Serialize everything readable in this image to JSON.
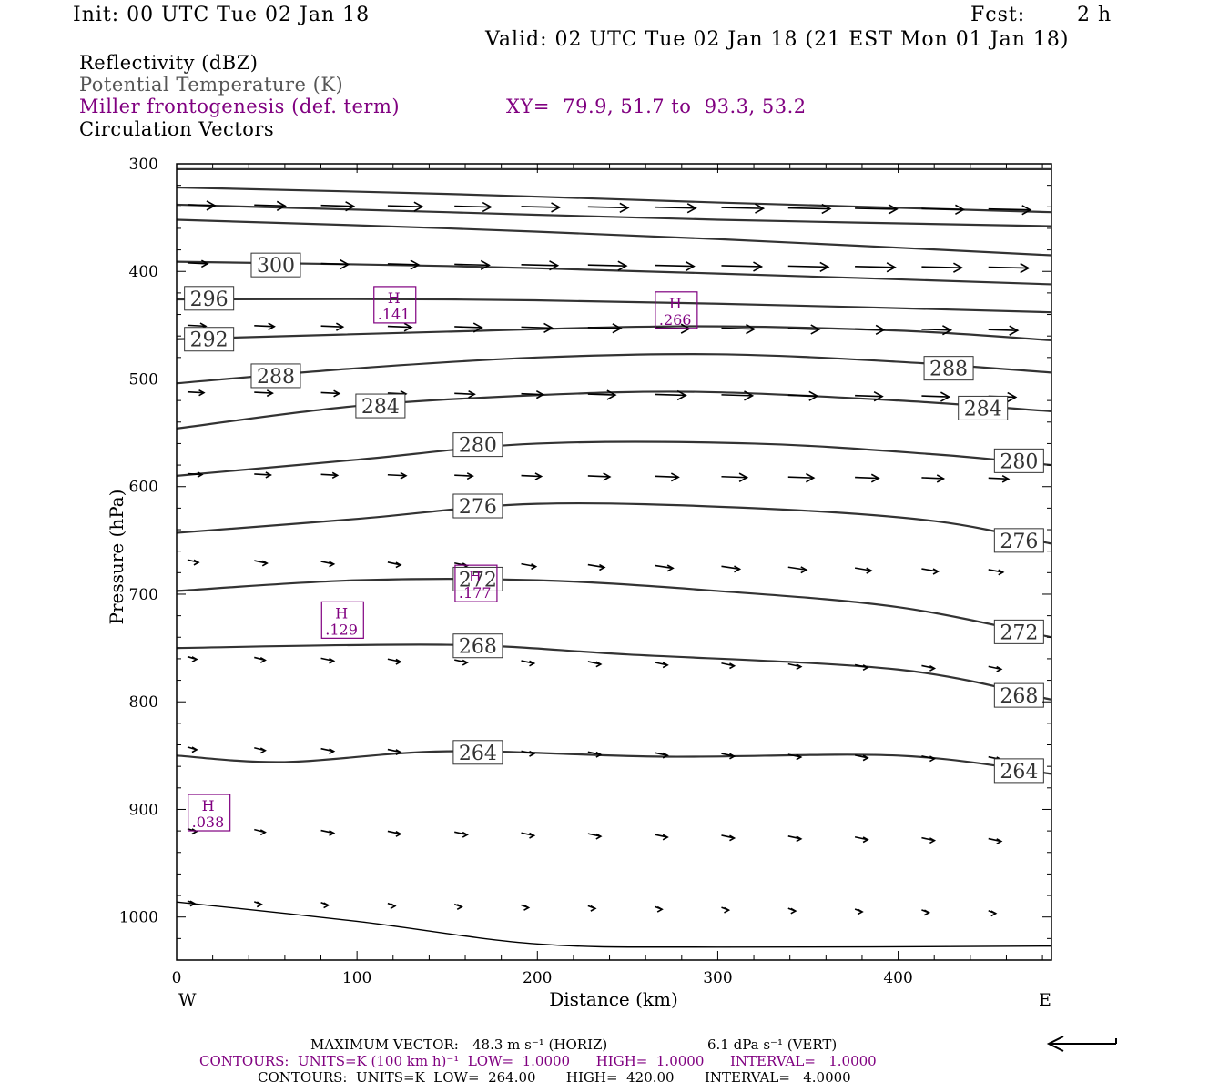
{
  "header": {
    "init": "Init: 00 UTC Tue 02 Jan 18",
    "fcst_label": "Fcst:",
    "fcst_value": "2 h",
    "valid": "Valid: 02 UTC Tue 02 Jan 18 (21 EST Mon 01 Jan 18)"
  },
  "legend": {
    "reflectivity": "Reflectivity (dBZ)",
    "potential_temperature": "Potential Temperature (K)",
    "miller": "Miller frontogenesis (def. term)",
    "xy": "XY=  79.9, 51.7 to  93.3, 53.2",
    "circulation": "Circulation Vectors"
  },
  "footer": {
    "max_vector_label": "MAXIMUM VECTOR:",
    "max_vector_horiz_html": "48.3 m s⁻¹ (HORIZ)",
    "max_vector_vert": "6.1 dPa s⁻¹ (VERT)",
    "contours1": "CONTOURS:  UNITS=K (100 km h)⁻¹  LOW=  1.0000      HIGH=  1.0000      INTERVAL=   1.0000",
    "contours2": "CONTOURS:  UNITS=K  LOW=  264.00       HIGH=  420.00       INTERVAL=   4.0000"
  },
  "colors": {
    "purple": "#800080",
    "contour": "#333333",
    "frame": "#000000"
  },
  "chart_data": {
    "type": "line",
    "xlabel": "Distance (km)",
    "ylabel": "Pressure (hPa)",
    "xlim": [
      0,
      485
    ],
    "ylim": [
      1040,
      300
    ],
    "x_ticks": [
      0,
      100,
      200,
      300,
      400
    ],
    "y_ticks": [
      300,
      400,
      500,
      600,
      700,
      800,
      900,
      1000
    ],
    "direction_labels": {
      "west": "W",
      "east": "E"
    },
    "theta_contours": [
      {
        "label": "300",
        "points": [
          [
            0,
            391
          ],
          [
            150,
            395
          ],
          [
            300,
            402
          ],
          [
            485,
            412
          ]
        ],
        "label_at": [
          [
            55,
            394
          ]
        ]
      },
      {
        "label": "296",
        "points": [
          [
            0,
            426
          ],
          [
            150,
            426
          ],
          [
            300,
            430
          ],
          [
            485,
            438
          ]
        ],
        "label_at": [
          [
            18,
            425
          ]
        ]
      },
      {
        "label": "292",
        "points": [
          [
            0,
            463
          ],
          [
            150,
            456
          ],
          [
            280,
            451
          ],
          [
            400,
            455
          ],
          [
            485,
            464
          ]
        ],
        "label_at": [
          [
            18,
            463
          ]
        ]
      },
      {
        "label": "288",
        "points": [
          [
            0,
            504
          ],
          [
            100,
            490
          ],
          [
            200,
            480
          ],
          [
            300,
            477
          ],
          [
            400,
            484
          ],
          [
            485,
            494
          ]
        ],
        "label_at": [
          [
            55,
            497
          ],
          [
            428,
            490
          ]
        ]
      },
      {
        "label": "284",
        "points": [
          [
            0,
            546
          ],
          [
            100,
            525
          ],
          [
            200,
            515
          ],
          [
            290,
            512
          ],
          [
            400,
            520
          ],
          [
            485,
            530
          ]
        ],
        "label_at": [
          [
            113,
            525
          ],
          [
            447,
            527
          ]
        ]
      },
      {
        "label": "280",
        "points": [
          [
            0,
            590
          ],
          [
            100,
            575
          ],
          [
            200,
            560
          ],
          [
            320,
            560
          ],
          [
            420,
            570
          ],
          [
            485,
            580
          ]
        ],
        "label_at": [
          [
            167,
            561
          ],
          [
            467,
            576
          ]
        ]
      },
      {
        "label": "276",
        "points": [
          [
            0,
            643
          ],
          [
            100,
            630
          ],
          [
            200,
            616
          ],
          [
            320,
            620
          ],
          [
            420,
            632
          ],
          [
            485,
            653
          ]
        ],
        "label_at": [
          [
            167,
            618
          ],
          [
            467,
            650
          ]
        ]
      },
      {
        "label": "272",
        "points": [
          [
            0,
            697
          ],
          [
            100,
            687
          ],
          [
            200,
            687
          ],
          [
            300,
            697
          ],
          [
            400,
            712
          ],
          [
            485,
            740
          ]
        ],
        "label_at": [
          [
            167,
            686
          ],
          [
            467,
            735
          ]
        ]
      },
      {
        "label": "268",
        "points": [
          [
            0,
            750
          ],
          [
            150,
            747
          ],
          [
            250,
            756
          ],
          [
            400,
            770
          ],
          [
            485,
            798
          ]
        ],
        "label_at": [
          [
            167,
            748
          ],
          [
            467,
            794
          ]
        ]
      },
      {
        "label": "264",
        "points": [
          [
            0,
            850
          ],
          [
            60,
            856
          ],
          [
            150,
            846
          ],
          [
            270,
            851
          ],
          [
            400,
            850
          ],
          [
            485,
            867
          ]
        ],
        "label_at": [
          [
            167,
            847
          ],
          [
            467,
            864
          ]
        ]
      }
    ],
    "ground": {
      "points": [
        [
          0,
          986
        ],
        [
          100,
          1004
        ],
        [
          200,
          1025
        ],
        [
          300,
          1028
        ],
        [
          485,
          1027
        ]
      ]
    },
    "frontogenesis_highs": [
      {
        "label": "H",
        "value": ".141",
        "x": 121,
        "p": 431
      },
      {
        "label": "H",
        "value": ".266",
        "x": 277,
        "p": 436
      },
      {
        "label": "H",
        "value": ".177",
        "x": 166,
        "p": 690
      },
      {
        "label": "H",
        "value": ".129",
        "x": 92,
        "p": 724
      },
      {
        "label": "H",
        "value": ".038",
        "x": 18,
        "p": 903
      }
    ],
    "vector_rows": [
      {
        "p": 338,
        "x0": 2,
        "dx": 37,
        "n": 13,
        "len": [
          30,
          34,
          36,
          38,
          40,
          42,
          44,
          45,
          46,
          46,
          46,
          46,
          46
        ]
      },
      {
        "p": 392,
        "x0": 2,
        "dx": 37,
        "n": 13,
        "len": [
          22,
          26,
          30,
          34,
          38,
          40,
          42,
          43,
          44,
          44,
          44,
          44,
          44
        ]
      },
      {
        "p": 450,
        "x0": 2,
        "dx": 37,
        "n": 13,
        "len": [
          20,
          22,
          24,
          26,
          30,
          34,
          36,
          38,
          36,
          34,
          32,
          32,
          32
        ]
      },
      {
        "p": 512,
        "x0": 2,
        "dx": 37,
        "n": 13,
        "len": [
          18,
          20,
          20,
          20,
          22,
          24,
          30,
          34,
          34,
          32,
          30,
          30,
          30
        ]
      },
      {
        "p": 588,
        "x0": 2,
        "dx": 37,
        "n": 13,
        "len": [
          16,
          18,
          18,
          20,
          20,
          22,
          24,
          26,
          28,
          28,
          26,
          24,
          22
        ]
      },
      {
        "p": 668,
        "x0": 2,
        "dx": 37,
        "n": 13,
        "len": [
          12,
          14,
          14,
          14,
          14,
          16,
          18,
          20,
          20,
          20,
          18,
          18,
          16
        ]
      },
      {
        "p": 758,
        "x0": 2,
        "dx": 37,
        "n": 13,
        "len": [
          10,
          12,
          14,
          14,
          14,
          14,
          14,
          14,
          14,
          14,
          14,
          14,
          14
        ]
      },
      {
        "p": 842,
        "x0": 2,
        "dx": 37,
        "n": 13,
        "len": [
          10,
          12,
          14,
          14,
          14,
          14,
          14,
          14,
          14,
          14,
          14,
          14,
          14
        ]
      },
      {
        "p": 918,
        "x0": 2,
        "dx": 37,
        "n": 13,
        "len": [
          10,
          12,
          14,
          14,
          14,
          14,
          14,
          14,
          14,
          14,
          14,
          14,
          14
        ]
      },
      {
        "p": 985,
        "x0": 2,
        "dx": 37,
        "n": 13,
        "len": [
          8,
          8,
          8,
          8,
          8,
          8,
          8,
          8,
          8,
          8,
          8,
          8,
          8
        ]
      }
    ]
  }
}
